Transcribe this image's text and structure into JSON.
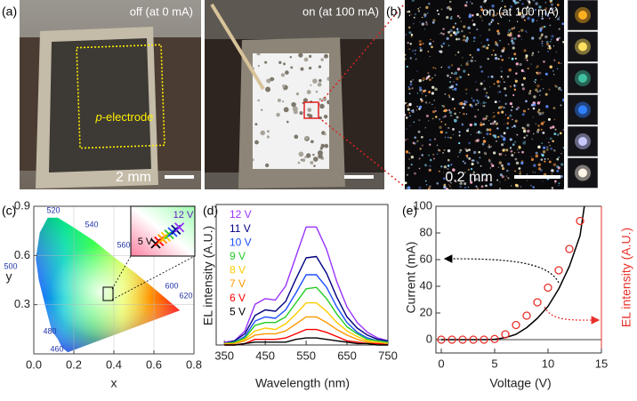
{
  "panels": [
    "(a)",
    "(b)",
    "(c)",
    "(d)",
    "(e)"
  ],
  "photo_a": {
    "off_label": "off (at 0 mA)",
    "on_label": "on (at 100 mA)",
    "electrode_prefix": "p",
    "electrode_label": "-electrode",
    "scale_label": "2 mm"
  },
  "photo_b": {
    "on_label": "on (at 100 mA)",
    "scale_label": "0.2 mm"
  },
  "chart_data": [
    {
      "type": "cie",
      "xlabel": "x",
      "ylabel": "y",
      "xlim": [
        0,
        0.8
      ],
      "ylim": [
        0,
        0.9
      ],
      "xticks": [
        {
          "value": 0,
          "label": "0.0"
        },
        {
          "value": 0.2,
          "label": "0.2"
        },
        {
          "value": 0.4,
          "label": "0.4"
        },
        {
          "value": 0.6,
          "label": "0.6"
        },
        {
          "value": 0.8,
          "label": "0.8"
        }
      ],
      "yticks": [
        {
          "value": 0.3,
          "label": "0.3"
        },
        {
          "value": 0.6,
          "label": "0.6"
        },
        {
          "value": 0.9,
          "label": "0.9"
        }
      ],
      "grid": true,
      "wavelength_labels": [
        "520",
        "540",
        "560",
        "600",
        "620",
        "500",
        "480",
        "460"
      ],
      "inset_labels": [
        "12 V",
        "5 V"
      ]
    },
    {
      "type": "line",
      "xlabel": "Wavelength (nm)",
      "ylabel": "EL intensity (A.U.)",
      "xlim": [
        330,
        750
      ],
      "ylim": [
        0,
        1
      ],
      "xticks": [
        350,
        450,
        550,
        650,
        750
      ],
      "x": [
        350,
        375,
        400,
        425,
        450,
        475,
        500,
        525,
        550,
        575,
        600,
        625,
        650,
        675,
        700,
        725,
        750
      ],
      "series": [
        {
          "name": "12 V",
          "color": "#9933ff",
          "values": [
            0.02,
            0.03,
            0.1,
            0.29,
            0.33,
            0.32,
            0.42,
            0.63,
            0.84,
            0.84,
            0.68,
            0.45,
            0.27,
            0.16,
            0.09,
            0.05,
            0.03
          ]
        },
        {
          "name": "11 V",
          "color": "#000080",
          "values": [
            0.01,
            0.03,
            0.08,
            0.21,
            0.25,
            0.24,
            0.31,
            0.47,
            0.62,
            0.63,
            0.51,
            0.34,
            0.2,
            0.12,
            0.07,
            0.04,
            0.03
          ]
        },
        {
          "name": "10 V",
          "color": "#1f4fff",
          "values": [
            0.01,
            0.02,
            0.06,
            0.17,
            0.2,
            0.19,
            0.25,
            0.37,
            0.5,
            0.5,
            0.41,
            0.27,
            0.16,
            0.09,
            0.05,
            0.03,
            0.02
          ]
        },
        {
          "name": "9 V",
          "color": "#22cc22",
          "values": [
            0.01,
            0.02,
            0.05,
            0.14,
            0.16,
            0.16,
            0.2,
            0.3,
            0.4,
            0.41,
            0.33,
            0.22,
            0.13,
            0.08,
            0.04,
            0.03,
            0.02
          ]
        },
        {
          "name": "8 V",
          "color": "#ffcc00",
          "values": [
            0.01,
            0.01,
            0.04,
            0.1,
            0.12,
            0.11,
            0.15,
            0.22,
            0.3,
            0.3,
            0.24,
            0.16,
            0.1,
            0.06,
            0.03,
            0.02,
            0.01
          ]
        },
        {
          "name": "7 V",
          "color": "#ff9900",
          "values": [
            0,
            0.01,
            0.03,
            0.07,
            0.08,
            0.08,
            0.1,
            0.15,
            0.2,
            0.2,
            0.16,
            0.11,
            0.07,
            0.04,
            0.02,
            0.01,
            0.01
          ]
        },
        {
          "name": "6 V",
          "color": "#ff0000",
          "values": [
            0,
            0,
            0.01,
            0.04,
            0.04,
            0.04,
            0.05,
            0.08,
            0.11,
            0.11,
            0.09,
            0.06,
            0.03,
            0.02,
            0.01,
            0.01,
            0
          ]
        },
        {
          "name": "5 V",
          "color": "#000000",
          "values": [
            0,
            0,
            0.01,
            0.02,
            0.02,
            0.02,
            0.02,
            0.04,
            0.05,
            0.05,
            0.04,
            0.03,
            0.02,
            0.01,
            0.01,
            0,
            0
          ]
        }
      ]
    },
    {
      "type": "line_scatter",
      "xlabel": "Voltage (V)",
      "ylabel": "Current (mA)",
      "y2label": "EL intensity (A.U.)",
      "xlim": [
        -0.5,
        15
      ],
      "ylim": [
        -10,
        100
      ],
      "y2lim": [
        -10,
        100
      ],
      "xticks": [
        0,
        5,
        10,
        15
      ],
      "yticks": [
        0,
        20,
        40,
        60,
        80,
        100
      ],
      "series": [
        {
          "color": "#000000",
          "x": [
            0,
            2,
            4,
            5,
            6,
            7,
            8,
            9,
            10,
            11,
            12,
            13,
            13.4
          ],
          "values": [
            0,
            0,
            0,
            0.3,
            1.5,
            4,
            9,
            16,
            25,
            38,
            55,
            78,
            100
          ]
        },
        {
          "color": "#e8302a",
          "axis": "y2",
          "x": [
            0,
            1,
            2,
            3,
            4,
            5,
            6,
            7,
            8,
            9,
            10,
            11,
            12,
            13
          ],
          "values": [
            0,
            0,
            0,
            0,
            0,
            0.5,
            4,
            11,
            18,
            28,
            39,
            52,
            68,
            89
          ]
        }
      ]
    }
  ]
}
